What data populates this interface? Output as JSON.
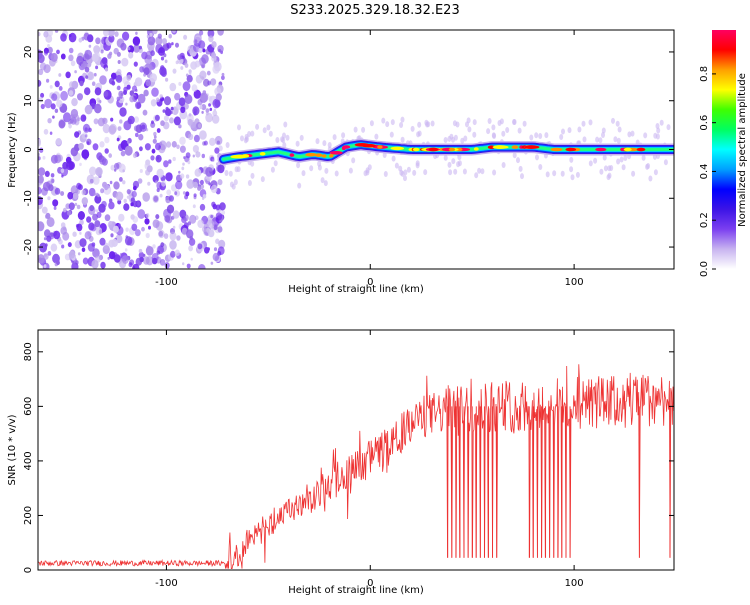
{
  "title": "S233.2025.329.18.32.E23",
  "chart_data": [
    {
      "type": "heatmap",
      "xlabel": "Height of straight line (km)",
      "ylabel": "Frequency (Hz)",
      "xlim": [
        -163,
        149
      ],
      "ylim": [
        -24.5,
        24.5
      ],
      "xticks": [
        -100,
        0,
        100
      ],
      "yticks": [
        -20,
        -10,
        0,
        10,
        20
      ],
      "colorbar": {
        "label": "Normalized spectral amplitude",
        "range": [
          0,
          0.98
        ],
        "ticks": [
          "0.0",
          "0.2",
          "0.4",
          "0.6",
          "0.8"
        ],
        "colormap": [
          "#ffffff",
          "#c8b4f0",
          "#7b3ff0",
          "#3c14e6",
          "#0000ff",
          "#00a0ff",
          "#00ffff",
          "#00ff60",
          "#40ff00",
          "#ffff00",
          "#ffa000",
          "#ff0000",
          "#ff0060"
        ]
      },
      "noise_region_x": [
        -163,
        -72
      ],
      "signal_ridge": {
        "x": [
          -72,
          -65,
          -55,
          -45,
          -35,
          -28,
          -20,
          -12,
          -5,
          5,
          20,
          35,
          50,
          60,
          70,
          80,
          90,
          100,
          110,
          120,
          130,
          140,
          149
        ],
        "y": [
          -2,
          -1.5,
          -1,
          -0.5,
          -1.5,
          -1,
          -1.5,
          0.5,
          1,
          0.5,
          0,
          0,
          0,
          0.5,
          0.5,
          0.5,
          0,
          0,
          0,
          0,
          0,
          0,
          0
        ]
      }
    },
    {
      "type": "line",
      "xlabel": "Height of straight line (km)",
      "ylabel": "SNR (10 * v/v)",
      "xlim": [
        -163,
        149
      ],
      "ylim": [
        0,
        880
      ],
      "xticks": [
        -100,
        0,
        100
      ],
      "yticks": [
        0,
        200,
        400,
        600,
        800
      ],
      "color": "#ee3333",
      "series": [
        {
          "x": [
            -163,
            -150,
            -130,
            -110,
            -90,
            -72,
            -65,
            -60,
            -55,
            -50,
            -45,
            -40,
            -35,
            -30,
            -25,
            -20,
            -15,
            -10,
            -5,
            0,
            5,
            10,
            15,
            20,
            25,
            30,
            35,
            40,
            50,
            60,
            70,
            80,
            90,
            100,
            110,
            120,
            130,
            140,
            149
          ],
          "y": [
            25,
            25,
            25,
            25,
            25,
            25,
            40,
            100,
            140,
            160,
            180,
            220,
            230,
            245,
            280,
            310,
            350,
            360,
            390,
            410,
            440,
            470,
            500,
            530,
            560,
            570,
            580,
            585,
            595,
            600,
            600,
            605,
            610,
            610,
            615,
            615,
            620,
            625,
            630
          ]
        }
      ],
      "dropouts_x": [
        38,
        40,
        42,
        44,
        46,
        48,
        50,
        52,
        54,
        56,
        58,
        60,
        62,
        78,
        80,
        82,
        84,
        86,
        88,
        90,
        92,
        94,
        96,
        98,
        132,
        147
      ]
    }
  ]
}
